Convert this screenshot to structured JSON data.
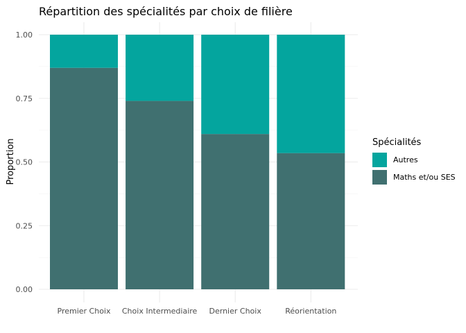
{
  "chart_data": {
    "type": "bar",
    "stacked": true,
    "title": "Répartition des spécialités par choix de filière",
    "xlabel": "",
    "ylabel": "Proportion",
    "ylim": [
      0,
      1
    ],
    "yticks": [
      "0.00",
      "0.25",
      "0.50",
      "0.75",
      "1.00"
    ],
    "grid": true,
    "legend_position": "right",
    "legend_title": "Spécialités",
    "categories": [
      "Premier Choix",
      "Choix Intermediaire",
      "Dernier Choix",
      "Réorientation"
    ],
    "series": [
      {
        "name": "Autres",
        "color": "#04A59E",
        "values": [
          0.13,
          0.26,
          0.39,
          0.465
        ]
      },
      {
        "name": "Maths et/ou SES",
        "color": "#407070",
        "values": [
          0.87,
          0.74,
          0.61,
          0.535
        ]
      }
    ]
  }
}
